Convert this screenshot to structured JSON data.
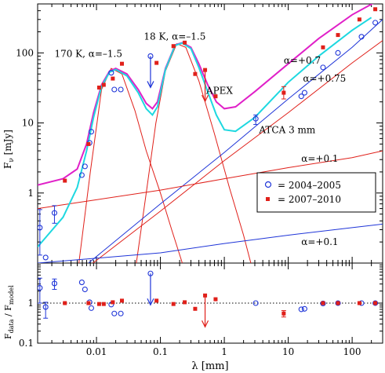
{
  "chart_data": [
    {
      "type": "scatter",
      "panel": "main",
      "xlabel": "",
      "ylabel_main": "F",
      "ylabel_sub": "ν",
      "ylabel_unit": " [mJy]",
      "xscale": "log",
      "yscale": "log",
      "xlim": [
        0.0012,
        300
      ],
      "ylim": [
        0.1,
        500
      ],
      "yticks": [
        {
          "v": 1,
          "label": "1"
        },
        {
          "v": 10,
          "label": "10"
        },
        {
          "v": 100,
          "label": "100"
        }
      ],
      "legend": {
        "placement": "right-middle",
        "entries": [
          {
            "label": "= 2004–2005",
            "marker": "circle",
            "color": "#1f35d8"
          },
          {
            "label": "= 2007–2010",
            "marker": "square",
            "color": "#e0201a"
          }
        ]
      },
      "annotations": [
        {
          "text": "170 K, α=–1.5",
          "x": 0.0022,
          "y": 88
        },
        {
          "text": "18 K, α=–1.5",
          "x": 0.055,
          "y": 155
        },
        {
          "text": "α=+0.7",
          "x": 8.5,
          "y": 70
        },
        {
          "text": "α=+0.75",
          "x": 17,
          "y": 39
        },
        {
          "text": "APEX",
          "x": 0.52,
          "y": 26
        },
        {
          "text": "ATCA 3 mm",
          "x": 3.5,
          "y": 7.2
        },
        {
          "text": "α=+0.1",
          "x": 16,
          "y": 2.8
        },
        {
          "text": "α=+0.1",
          "x": 16,
          "y": 0.18
        }
      ],
      "model_curves": [
        {
          "name": "total model 2007–2010",
          "color": "#e020c8",
          "points": [
            [
              0.0012,
              1.3
            ],
            [
              0.003,
              1.6
            ],
            [
              0.005,
              2.2
            ],
            [
              0.007,
              5
            ],
            [
              0.009,
              14
            ],
            [
              0.012,
              35
            ],
            [
              0.016,
              55
            ],
            [
              0.02,
              60
            ],
            [
              0.03,
              50
            ],
            [
              0.045,
              30
            ],
            [
              0.06,
              19
            ],
            [
              0.075,
              16
            ],
            [
              0.09,
              20
            ],
            [
              0.12,
              60
            ],
            [
              0.17,
              130
            ],
            [
              0.22,
              140
            ],
            [
              0.3,
              120
            ],
            [
              0.4,
              70
            ],
            [
              0.55,
              35
            ],
            [
              0.75,
              20
            ],
            [
              1,
              16
            ],
            [
              1.5,
              17
            ],
            [
              3,
              28
            ],
            [
              10,
              70
            ],
            [
              30,
              160
            ],
            [
              100,
              350
            ],
            [
              230,
              530
            ]
          ]
        },
        {
          "name": "total model 2004–2005",
          "color": "#1ed8e0",
          "points": [
            [
              0.0012,
              0.17
            ],
            [
              0.003,
              0.45
            ],
            [
              0.005,
              1.2
            ],
            [
              0.007,
              4
            ],
            [
              0.009,
              12
            ],
            [
              0.012,
              33
            ],
            [
              0.016,
              53
            ],
            [
              0.02,
              58
            ],
            [
              0.03,
              47
            ],
            [
              0.045,
              27
            ],
            [
              0.06,
              16
            ],
            [
              0.075,
              13
            ],
            [
              0.09,
              17
            ],
            [
              0.12,
              58
            ],
            [
              0.17,
              128
            ],
            [
              0.22,
              138
            ],
            [
              0.3,
              115
            ],
            [
              0.4,
              62
            ],
            [
              0.55,
              28
            ],
            [
              0.75,
              13
            ],
            [
              1,
              8
            ],
            [
              1.5,
              7.6
            ],
            [
              3,
              12
            ],
            [
              10,
              38
            ],
            [
              30,
              90
            ],
            [
              100,
              210
            ],
            [
              200,
              320
            ]
          ]
        }
      ],
      "component_lines": [
        {
          "name": "170 K component",
          "color": "#e0201a",
          "points": [
            [
              0.0053,
              0.1
            ],
            [
              0.008,
              2
            ],
            [
              0.012,
              30
            ],
            [
              0.017,
              60
            ],
            [
              0.025,
              50
            ],
            [
              0.04,
              15
            ],
            [
              0.06,
              4
            ],
            [
              0.1,
              1
            ],
            [
              0.15,
              0.3
            ],
            [
              0.22,
              0.1
            ]
          ]
        },
        {
          "name": "18 K component",
          "color": "#e0201a",
          "points": [
            [
              0.042,
              0.1
            ],
            [
              0.06,
              1
            ],
            [
              0.085,
              10
            ],
            [
              0.12,
              55
            ],
            [
              0.18,
              135
            ],
            [
              0.25,
              120
            ],
            [
              0.4,
              40
            ],
            [
              0.7,
              7
            ],
            [
              1.2,
              1.2
            ],
            [
              2,
              0.25
            ],
            [
              2.6,
              0.1
            ]
          ]
        },
        {
          "name": "alpha +0.7 line",
          "color": "#e0201a",
          "points": [
            [
              0.0088,
              0.1
            ],
            [
              0.1,
              0.55
            ],
            [
              1,
              2.9
            ],
            [
              10,
              14
            ],
            [
              100,
              72
            ],
            [
              300,
              150
            ]
          ]
        },
        {
          "name": "alpha +0.75 line",
          "color": "#1f35d8",
          "points": [
            [
              0.0075,
              0.1
            ],
            [
              0.1,
              0.7
            ],
            [
              1,
              3.8
            ],
            [
              10,
              22
            ],
            [
              100,
              120
            ],
            [
              300,
              300
            ]
          ]
        },
        {
          "name": "alpha +0.1 line red",
          "color": "#e0201a",
          "points": [
            [
              0.0012,
              0.6
            ],
            [
              0.1,
              1.1
            ],
            [
              1,
              1.6
            ],
            [
              10,
              2.3
            ],
            [
              100,
              3.2
            ],
            [
              300,
              4.0
            ]
          ]
        },
        {
          "name": "alpha +0.1 line blue",
          "color": "#1f35d8",
          "points": [
            [
              0.0012,
              0.1
            ],
            [
              0.1,
              0.14
            ],
            [
              1,
              0.19
            ],
            [
              10,
              0.25
            ],
            [
              100,
              0.32
            ],
            [
              300,
              0.36
            ]
          ]
        }
      ],
      "series": [
        {
          "name": "2004–2005",
          "marker": "circle",
          "color": "#1f35d8",
          "points": [
            {
              "x": 0.0013,
              "y": 0.32,
              "lo": 0.13,
              "hi": 0.58
            },
            {
              "x": 0.0016,
              "y": 0.12
            },
            {
              "x": 0.0022,
              "y": 0.52,
              "lo": 0.37,
              "hi": 0.66
            },
            {
              "x": 0.0059,
              "y": 1.8
            },
            {
              "x": 0.0066,
              "y": 2.4
            },
            {
              "x": 0.0078,
              "y": 5.2
            },
            {
              "x": 0.0083,
              "y": 7.5
            },
            {
              "x": 0.017,
              "y": 52
            },
            {
              "x": 0.019,
              "y": 30
            },
            {
              "x": 0.024,
              "y": 30
            },
            {
              "x": 3.1,
              "y": 11.5,
              "lo": 9.5,
              "hi": 13
            },
            {
              "x": 16,
              "y": 24
            },
            {
              "x": 18,
              "y": 27
            },
            {
              "x": 35,
              "y": 62
            },
            {
              "x": 60,
              "y": 100
            },
            {
              "x": 140,
              "y": 170
            },
            {
              "x": 230,
              "y": 270
            }
          ]
        },
        {
          "name": "2007–2010",
          "marker": "square",
          "color": "#e0201a",
          "points": [
            {
              "x": 0.0032,
              "y": 1.5
            },
            {
              "x": 0.0075,
              "y": 5.0
            },
            {
              "x": 0.011,
              "y": 32
            },
            {
              "x": 0.013,
              "y": 35
            },
            {
              "x": 0.018,
              "y": 43
            },
            {
              "x": 0.025,
              "y": 70
            },
            {
              "x": 0.087,
              "y": 72
            },
            {
              "x": 0.16,
              "y": 125
            },
            {
              "x": 0.24,
              "y": 140
            },
            {
              "x": 0.35,
              "y": 50
            },
            {
              "x": 0.73,
              "y": 24
            },
            {
              "x": 8.5,
              "y": 27,
              "lo": 22,
              "hi": 33
            },
            {
              "x": 35,
              "y": 120
            },
            {
              "x": 60,
              "y": 180
            },
            {
              "x": 130,
              "y": 300
            },
            {
              "x": 230,
              "y": 420
            }
          ]
        }
      ],
      "upper_limits": [
        {
          "x": 0.07,
          "y": 90,
          "color": "#1f35d8"
        },
        {
          "x": 0.5,
          "y": 57,
          "color": "#e0201a"
        }
      ]
    },
    {
      "type": "scatter",
      "panel": "residuals",
      "xlabel": "λ [mm]",
      "ylabel_main": "F",
      "ylabel_sub1": "data",
      "ylabel_mid": " / F",
      "ylabel_sub2": "model",
      "xscale": "log",
      "yscale": "log",
      "xlim": [
        0.0012,
        300
      ],
      "ylim": [
        0.1,
        10
      ],
      "xticks": [
        {
          "v": 0.01,
          "label": "0.01"
        },
        {
          "v": 0.1,
          "label": "0.1"
        },
        {
          "v": 1,
          "label": "1"
        },
        {
          "v": 10,
          "label": "10"
        },
        {
          "v": 100,
          "label": "100"
        }
      ],
      "yticks": [
        {
          "v": 0.1,
          "label": "0.1"
        },
        {
          "v": 1,
          "label": "1"
        }
      ],
      "reference_line": 1,
      "series": [
        {
          "name": "2004–2005",
          "marker": "circle",
          "color": "#1f35d8",
          "points": [
            {
              "x": 0.0013,
              "y": 2.4,
              "lo": 1.0,
              "hi": 4.2
            },
            {
              "x": 0.0016,
              "y": 0.8,
              "lo": 0.42,
              "hi": 1.05
            },
            {
              "x": 0.0022,
              "y": 3.1,
              "lo": 2.2,
              "hi": 4.0
            },
            {
              "x": 0.0059,
              "y": 3.3
            },
            {
              "x": 0.0066,
              "y": 2.2
            },
            {
              "x": 0.0078,
              "y": 1.05
            },
            {
              "x": 0.0083,
              "y": 0.75
            },
            {
              "x": 0.017,
              "y": 0.92
            },
            {
              "x": 0.019,
              "y": 0.55
            },
            {
              "x": 0.024,
              "y": 0.55
            },
            {
              "x": 3.1,
              "y": 1.0
            },
            {
              "x": 16,
              "y": 0.7
            },
            {
              "x": 18,
              "y": 0.72
            },
            {
              "x": 35,
              "y": 0.98
            },
            {
              "x": 60,
              "y": 1.0
            },
            {
              "x": 140,
              "y": 1.0
            },
            {
              "x": 230,
              "y": 1.0
            }
          ]
        },
        {
          "name": "2007–2010",
          "marker": "square",
          "color": "#e0201a",
          "points": [
            {
              "x": 0.0032,
              "y": 1.0
            },
            {
              "x": 0.0075,
              "y": 1.0
            },
            {
              "x": 0.011,
              "y": 0.95
            },
            {
              "x": 0.013,
              "y": 0.95
            },
            {
              "x": 0.018,
              "y": 1.05
            },
            {
              "x": 0.025,
              "y": 1.15
            },
            {
              "x": 0.087,
              "y": 1.15
            },
            {
              "x": 0.16,
              "y": 0.95
            },
            {
              "x": 0.24,
              "y": 1.05
            },
            {
              "x": 0.35,
              "y": 0.72
            },
            {
              "x": 0.73,
              "y": 1.25
            },
            {
              "x": 8.5,
              "y": 0.55,
              "lo": 0.45,
              "hi": 0.65
            },
            {
              "x": 35,
              "y": 1.0
            },
            {
              "x": 60,
              "y": 1.0
            },
            {
              "x": 130,
              "y": 1.0
            },
            {
              "x": 230,
              "y": 1.0
            }
          ]
        }
      ],
      "upper_limits": [
        {
          "x": 0.07,
          "y": 5.5,
          "color": "#1f35d8"
        },
        {
          "x": 0.5,
          "y": 1.55,
          "color": "#e0201a"
        }
      ]
    }
  ]
}
